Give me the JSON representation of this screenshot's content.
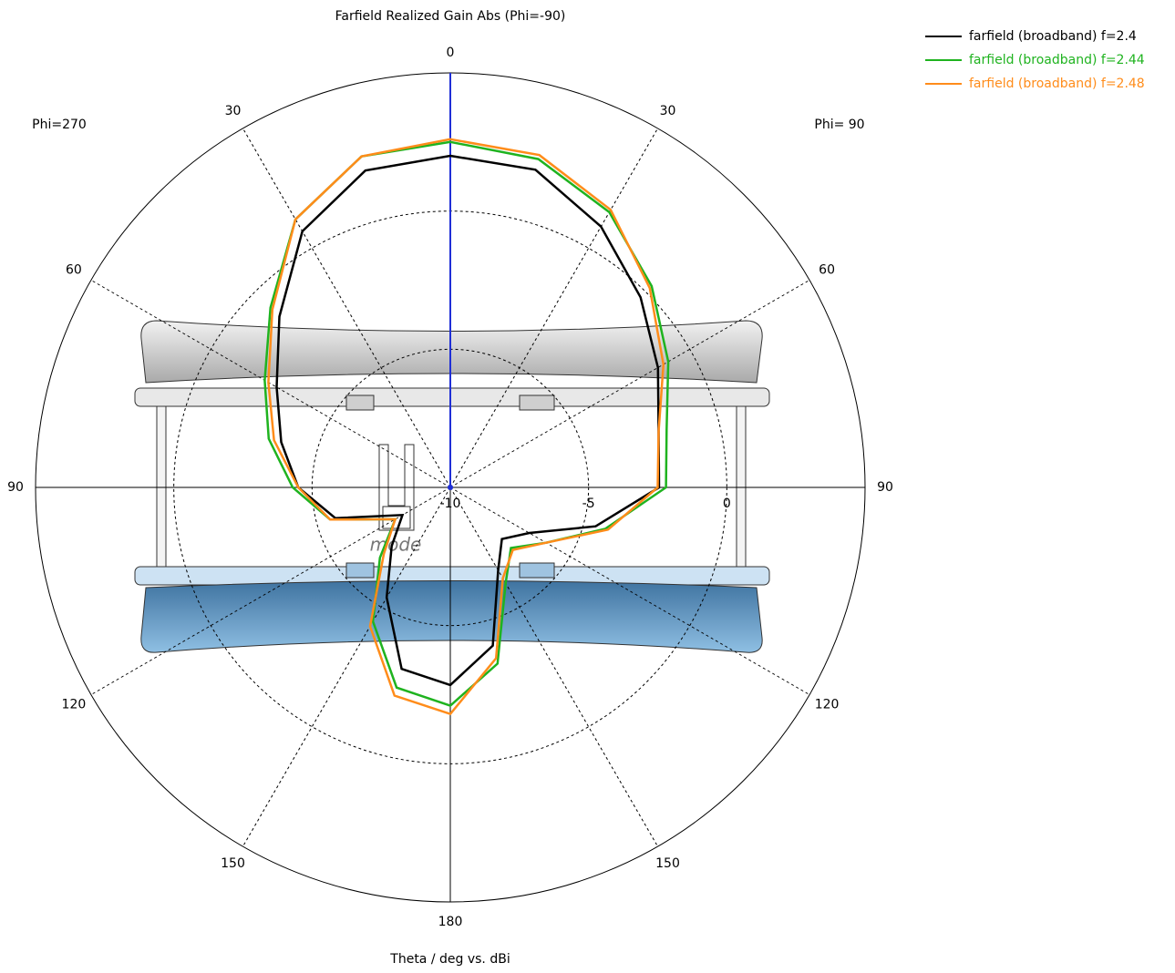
{
  "chart_data": {
    "type": "polar",
    "title": "Farfield Realized Gain Abs (Phi=-90)",
    "axis_label": "Theta / deg vs. dBi",
    "left_label": "Phi=270",
    "right_label": "Phi= 90",
    "device_label": "mode",
    "thetalim": [
      0,
      360
    ],
    "thetaticks": [
      0,
      30,
      60,
      90,
      120,
      150,
      180,
      {
        "value": 210,
        "label": "150"
      },
      {
        "value": 240,
        "label": "120"
      },
      {
        "value": 270,
        "label": "90"
      },
      {
        "value": 300,
        "label": "60"
      },
      {
        "value": 330,
        "label": "30"
      }
    ],
    "rlim": [
      -10,
      5
    ],
    "rticks": [
      -10,
      -5,
      0
    ],
    "theta": [
      0,
      15,
      30,
      45,
      60,
      75,
      90,
      105,
      120,
      135,
      150,
      165,
      180,
      195,
      210,
      225,
      240,
      255,
      270,
      285,
      300,
      315,
      330,
      345
    ],
    "series": [
      {
        "name": "farfield (broadband) f=2.4",
        "color": "#000000",
        "values": [
          2.0,
          1.9,
          0.9,
          -0.27,
          -1.33,
          -2.2,
          -2.45,
          -4.56,
          -6.7,
          -7.36,
          -6.54,
          -4.07,
          -2.85,
          -3.2,
          -5.4,
          -7.0,
          -8.0,
          -5.7,
          -4.5,
          -3.67,
          -2.75,
          -1.26,
          0.7,
          1.87
        ]
      },
      {
        "name": "farfield (broadband) f=2.44",
        "color": "#1fb31f",
        "values": [
          2.5,
          2.3,
          1.5,
          0.3,
          -0.9,
          -1.9,
          -2.2,
          -4.2,
          -6.0,
          -6.9,
          -6.0,
          -3.4,
          -2.1,
          -2.5,
          -4.4,
          -6.4,
          -7.7,
          -5.5,
          -4.3,
          -3.2,
          -2.25,
          -0.8,
          1.2,
          2.4
        ]
      },
      {
        "name": "farfield (broadband) f=2.48",
        "color": "#ff8c1a",
        "values": [
          2.6,
          2.45,
          1.6,
          0.2,
          -1.1,
          -2.2,
          -2.5,
          -4.1,
          -6.0,
          -6.8,
          -6.2,
          -3.6,
          -1.8,
          -2.2,
          -4.2,
          -6.6,
          -7.7,
          -5.5,
          -4.5,
          -3.4,
          -2.4,
          -0.9,
          1.2,
          2.4
        ]
      }
    ]
  }
}
